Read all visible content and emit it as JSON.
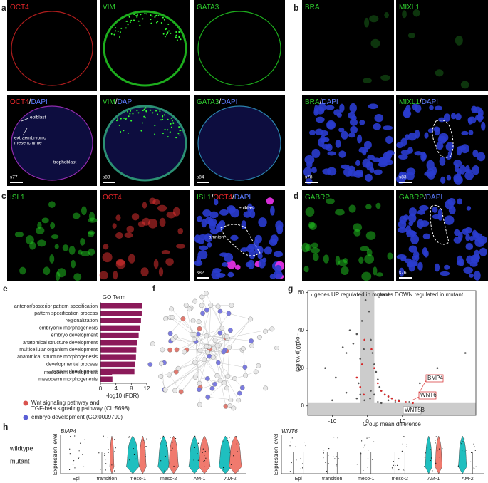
{
  "panel_labels": [
    "a",
    "b",
    "c",
    "d",
    "e",
    "f",
    "g",
    "h"
  ],
  "images": [
    {
      "label": [
        {
          "text": "OCT4",
          "color": "#e8262a"
        }
      ]
    },
    {
      "label": [
        {
          "text": "VIM",
          "color": "#2ecc2e"
        }
      ]
    },
    {
      "label": [
        {
          "text": "GATA3",
          "color": "#2ecc2e"
        }
      ]
    },
    {
      "label": [
        {
          "text": "OCT4",
          "color": "#e8262a"
        },
        {
          "text": "/",
          "color": "#ffffff"
        },
        {
          "text": "DAPI",
          "color": "#5c7cff"
        }
      ],
      "sample": "s77"
    },
    {
      "label": [
        {
          "text": "VIM",
          "color": "#2ecc2e"
        },
        {
          "text": "/",
          "color": "#ffffff"
        },
        {
          "text": "DAPI",
          "color": "#5c7cff"
        }
      ],
      "sample": "s83"
    },
    {
      "label": [
        {
          "text": "GATA3",
          "color": "#2ecc2e"
        },
        {
          "text": "/",
          "color": "#ffffff"
        },
        {
          "text": "DAPI",
          "color": "#5c7cff"
        }
      ],
      "sample": "s84"
    },
    {
      "label": [
        {
          "text": "BRA",
          "color": "#2ecc2e"
        }
      ]
    },
    {
      "label": [
        {
          "text": "MIXL1",
          "color": "#2ecc2e"
        }
      ]
    },
    {
      "label": [
        {
          "text": "BRA",
          "color": "#2ecc2e"
        },
        {
          "text": "/",
          "color": "#ffffff"
        },
        {
          "text": "DAPI",
          "color": "#5c7cff"
        }
      ],
      "sample": "s78"
    },
    {
      "label": [
        {
          "text": "MIXL1",
          "color": "#2ecc2e"
        },
        {
          "text": "/",
          "color": "#ffffff"
        },
        {
          "text": "DAPI",
          "color": "#5c7cff"
        }
      ],
      "sample": "s83"
    },
    {
      "label": [
        {
          "text": "ISL1",
          "color": "#2ecc2e"
        }
      ]
    },
    {
      "label": [
        {
          "text": "OCT4",
          "color": "#e8262a"
        }
      ]
    },
    {
      "label": [
        {
          "text": "ISL1",
          "color": "#2ecc2e"
        },
        {
          "text": "/",
          "color": "#ffffff"
        },
        {
          "text": "OCT4",
          "color": "#e8262a"
        },
        {
          "text": "/",
          "color": "#ffffff"
        },
        {
          "text": "DAPI",
          "color": "#5c7cff"
        }
      ],
      "sample": "s82"
    },
    {
      "label": [
        {
          "text": "GABRP",
          "color": "#2ecc2e"
        }
      ]
    },
    {
      "label": [
        {
          "text": "GABRP",
          "color": "#2ecc2e"
        },
        {
          "text": "/",
          "color": "#ffffff"
        },
        {
          "text": "DAPI",
          "color": "#5c7cff"
        }
      ],
      "sample": "s76"
    }
  ],
  "annotations_a": [
    "epiblast",
    "extraembryonic",
    "mesenchyme",
    "trophoblast"
  ],
  "annotations_c": [
    "epiblast",
    "amnion"
  ],
  "go_chart": {
    "type": "bar",
    "title": "GO Term",
    "x_label": "-log10 (FDR)",
    "categories": [
      "anterior/posterior pattern specification",
      "pattern specification process",
      "regionalization",
      "embryonic morphogenesis",
      "embryo development",
      "anatomical structure development",
      "multicellular organism development",
      "anatomical structure morphogenesis",
      "developmental process",
      "system development",
      "mesoderm development",
      "mesoderm morphogenesis"
    ],
    "values": [
      10.8,
      10.7,
      10.5,
      10.2,
      9.9,
      9.5,
      9.3,
      9.2,
      9.0,
      8.8,
      3.0,
      3.1
    ],
    "color": "#8b1a5a",
    "xlim": [
      0,
      12
    ],
    "xticks": [
      0,
      4,
      8,
      12
    ]
  },
  "network_legend": [
    {
      "lines": [
        "Wnt signaling pathway and",
        "TGF-beta signaling pathway (CL:5698)"
      ],
      "color": "#d9534f"
    },
    {
      "lines": [
        "embryo development (GO:0009790)"
      ],
      "color": "#5b5fd6"
    }
  ],
  "volcano": {
    "type": "scatter",
    "annotation_left": "genes UP regulated in mutant",
    "annotation_right": "genes DOWN regulated in mutant",
    "x_label": "Group mean difference",
    "y_label": "-log10(p-value)",
    "xlim": [
      -17,
      31
    ],
    "ylim": [
      -5,
      61
    ],
    "xticks": [
      -10,
      0,
      10
    ],
    "yticks": [
      0,
      20,
      40,
      60
    ],
    "band": {
      "x": [
        -2,
        2
      ],
      "y": 1.5
    },
    "series": [
      {
        "color": "#555555",
        "x": [
          -12,
          -9,
          -7,
          -6,
          -5,
          -4,
          -3,
          -2.5,
          -2,
          -1.5,
          -1,
          -0.5,
          0.5,
          1,
          1.5,
          2,
          2.5,
          3,
          3.5,
          4,
          5,
          6,
          7,
          9,
          12,
          15,
          20,
          -3,
          -2,
          1,
          2,
          0.8,
          -0.8,
          3,
          4,
          -6,
          6,
          8,
          -10,
          28
        ],
        "y": [
          20,
          15,
          31,
          28,
          40,
          33,
          38,
          12,
          25,
          45,
          30,
          56,
          50,
          35,
          28,
          22,
          18,
          14,
          10,
          8,
          6,
          5,
          4,
          3,
          2,
          12,
          20,
          4,
          6,
          8,
          6,
          4,
          3,
          2,
          1.5,
          7,
          3,
          2,
          3,
          28
        ]
      },
      {
        "color": "#d62728",
        "x": [
          -3,
          -2,
          -1.5,
          -1,
          -0.8,
          1.2,
          2,
          3,
          4,
          5,
          6,
          7,
          8,
          9,
          11,
          13
        ],
        "y": [
          15,
          10,
          22,
          6,
          35,
          30,
          20,
          12,
          8,
          6,
          5,
          4,
          3,
          2.5,
          2,
          1.5
        ]
      }
    ],
    "gene_labels": [
      {
        "text": "BMP4",
        "color": "#d62728"
      },
      {
        "text": "WNT6",
        "color": "#d62728"
      },
      {
        "text": "WNT5B",
        "color": "#888888"
      }
    ]
  },
  "violins": {
    "legend": [
      {
        "name": "wildtype",
        "color": "#1fbfbf"
      },
      {
        "name": "mutant",
        "color": "#f07a6e"
      }
    ],
    "y_label": "Expression level",
    "categories": [
      "Epi",
      "transition",
      "meso-1",
      "meso-2",
      "AM-1",
      "AM-2"
    ],
    "genes": [
      "BMP4",
      "WNT6"
    ]
  }
}
